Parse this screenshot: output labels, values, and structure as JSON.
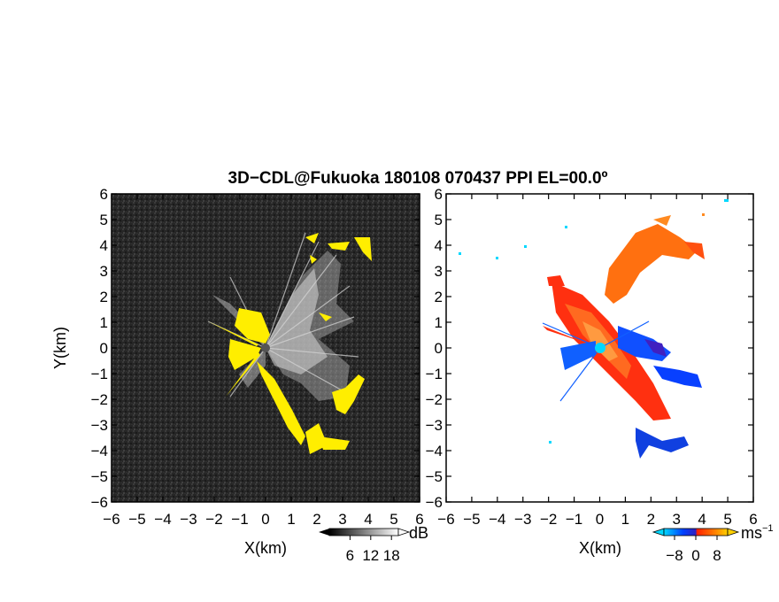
{
  "title": "3D−CDL@Fukuoka 180108 070437 PPI EL=00.0º",
  "chart_data": [
    {
      "type": "heatmap",
      "name": "reflectivity",
      "xlabel": "X(km)",
      "ylabel": "Y(km)",
      "xlim": [
        -6,
        6
      ],
      "ylim": [
        -6,
        6
      ],
      "x_ticks": [
        "−6",
        "−5",
        "−4",
        "−3",
        "−2",
        "−1",
        "0",
        "1",
        "2",
        "3",
        "4",
        "5",
        "6"
      ],
      "y_ticks": [
        "6",
        "5",
        "4",
        "3",
        "2",
        "1",
        "0",
        "−1",
        "−2",
        "−3",
        "−4",
        "−5",
        "−6"
      ],
      "background_color": "#2a2a2a",
      "saturation_color": "#ffee00",
      "colorbar": {
        "unit": "dB",
        "tick_labels": [
          "6",
          "12",
          "18"
        ],
        "tick_values": [
          6,
          12,
          18
        ],
        "range": [
          0,
          20
        ],
        "colors": [
          "#000000",
          "#ffffff"
        ]
      }
    },
    {
      "type": "heatmap",
      "name": "doppler-velocity",
      "xlabel": "X(km)",
      "xlim": [
        -6,
        6
      ],
      "ylim": [
        -6,
        6
      ],
      "x_ticks": [
        "−6",
        "−5",
        "−4",
        "−3",
        "−2",
        "−1",
        "0",
        "1",
        "2",
        "3",
        "4",
        "5",
        "6"
      ],
      "y_ticks": [
        "6",
        "5",
        "4",
        "3",
        "2",
        "1",
        "0",
        "−1",
        "−2",
        "−3",
        "−4",
        "−5",
        "−6"
      ],
      "background_color": "#ffffff",
      "colorbar": {
        "unit": "ms",
        "unit_exponent": "−1",
        "tick_labels": [
          "−8",
          "0",
          "8"
        ],
        "tick_values": [
          -8,
          0,
          8
        ],
        "range": [
          -12,
          12
        ],
        "colors": [
          "#00d8ff",
          "#0040ff",
          "#ff2000",
          "#ff8000",
          "#ffd000"
        ]
      }
    }
  ]
}
